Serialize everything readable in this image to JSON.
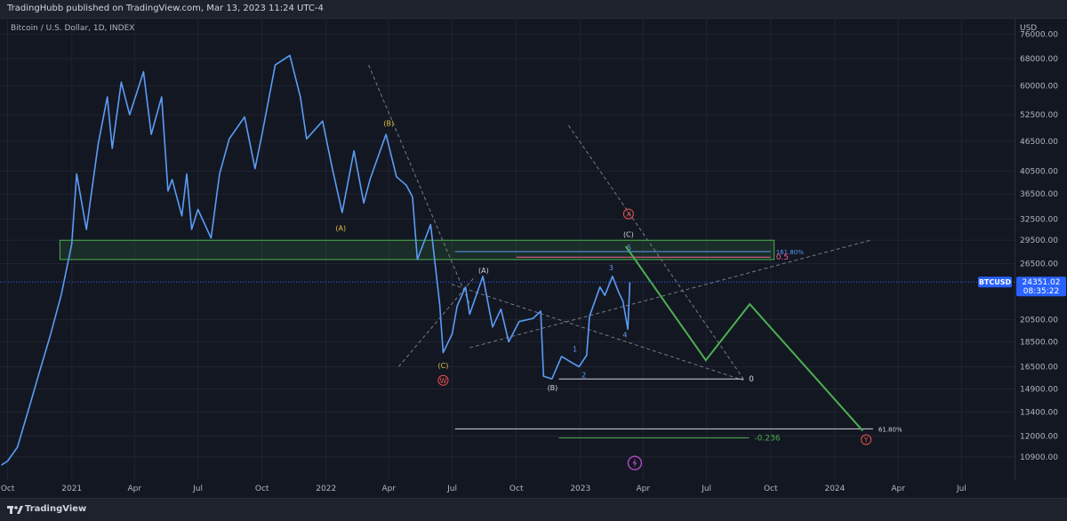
{
  "header": {
    "publisher_text": "TradingHubb published on TradingView.com, Mar 13, 2023 11:24 UTC-4"
  },
  "symbol_line": "Bitcoin / U.S. Dollar, 1D, INDEX",
  "footer": {
    "brand": "TradingView",
    "logo_icon": "tradingview-logo-icon"
  },
  "price_badge": {
    "symbol": "BTCUSD",
    "price": "24351.02",
    "countdown": "08:35:22",
    "color": "#2962ff"
  },
  "chart_data": {
    "type": "line",
    "title": "Bitcoin / U.S. Dollar, 1D, INDEX",
    "currency": "USD",
    "scale": "log",
    "ylim": [
      9800,
      82000
    ],
    "xlim": [
      "2020-09-20",
      "2024-09-15"
    ],
    "x_ticks": [
      {
        "label": "Oct",
        "date": "2020-10-01"
      },
      {
        "label": "2021",
        "date": "2021-01-01"
      },
      {
        "label": "Apr",
        "date": "2021-04-01"
      },
      {
        "label": "Jul",
        "date": "2021-07-01"
      },
      {
        "label": "Oct",
        "date": "2021-10-01"
      },
      {
        "label": "2022",
        "date": "2022-01-01"
      },
      {
        "label": "Apr",
        "date": "2022-04-01"
      },
      {
        "label": "Jul",
        "date": "2022-07-01"
      },
      {
        "label": "Oct",
        "date": "2022-10-01"
      },
      {
        "label": "2023",
        "date": "2023-01-01"
      },
      {
        "label": "Apr",
        "date": "2023-04-01"
      },
      {
        "label": "Jul",
        "date": "2023-07-01"
      },
      {
        "label": "Oct",
        "date": "2023-10-01"
      },
      {
        "label": "2024",
        "date": "2024-01-01"
      },
      {
        "label": "Apr",
        "date": "2024-04-01"
      },
      {
        "label": "Jul",
        "date": "2024-07-01"
      }
    ],
    "y_ticks": [
      {
        "label": "76000.00",
        "value": 76000
      },
      {
        "label": "68000.00",
        "value": 68000
      },
      {
        "label": "60000.00",
        "value": 60000
      },
      {
        "label": "52500.00",
        "value": 52500
      },
      {
        "label": "46500.00",
        "value": 46500
      },
      {
        "label": "40500.00",
        "value": 40500
      },
      {
        "label": "36500.00",
        "value": 36500
      },
      {
        "label": "32500.00",
        "value": 32500
      },
      {
        "label": "29500.00",
        "value": 29500
      },
      {
        "label": "26500.00",
        "value": 26500
      },
      {
        "label": "20500.00",
        "value": 20500
      },
      {
        "label": "18500.00",
        "value": 18500
      },
      {
        "label": "16500.00",
        "value": 16500
      },
      {
        "label": "14900.00",
        "value": 14900
      },
      {
        "label": "13400.00",
        "value": 13400
      },
      {
        "label": "12000.00",
        "value": 12000
      },
      {
        "label": "10900.00",
        "value": 10900
      }
    ],
    "series": [
      {
        "color": "#5b9cf6",
        "points": [
          [
            "2020-09-22",
            10500
          ],
          [
            "2020-10-01",
            10700
          ],
          [
            "2020-10-15",
            11400
          ],
          [
            "2020-11-01",
            13700
          ],
          [
            "2020-11-15",
            16000
          ],
          [
            "2020-12-01",
            19000
          ],
          [
            "2020-12-17",
            23000
          ],
          [
            "2021-01-01",
            29000
          ],
          [
            "2021-01-08",
            40000
          ],
          [
            "2021-01-22",
            31000
          ],
          [
            "2021-02-08",
            46000
          ],
          [
            "2021-02-21",
            57000
          ],
          [
            "2021-02-28",
            45000
          ],
          [
            "2021-03-13",
            61000
          ],
          [
            "2021-03-25",
            52500
          ],
          [
            "2021-04-14",
            64000
          ],
          [
            "2021-04-25",
            48000
          ],
          [
            "2021-05-10",
            57000
          ],
          [
            "2021-05-19",
            37000
          ],
          [
            "2021-05-25",
            39000
          ],
          [
            "2021-06-08",
            33000
          ],
          [
            "2021-06-15",
            40000
          ],
          [
            "2021-06-22",
            31000
          ],
          [
            "2021-07-01",
            34000
          ],
          [
            "2021-07-20",
            29800
          ],
          [
            "2021-08-01",
            40000
          ],
          [
            "2021-08-15",
            47000
          ],
          [
            "2021-09-06",
            52000
          ],
          [
            "2021-09-21",
            41000
          ],
          [
            "2021-10-01",
            48000
          ],
          [
            "2021-10-20",
            66000
          ],
          [
            "2021-11-10",
            69000
          ],
          [
            "2021-11-25",
            57000
          ],
          [
            "2021-12-04",
            47000
          ],
          [
            "2021-12-27",
            51000
          ],
          [
            "2022-01-10",
            41000
          ],
          [
            "2022-01-24",
            33500
          ],
          [
            "2022-02-10",
            44500
          ],
          [
            "2022-02-24",
            35000
          ],
          [
            "2022-03-05",
            39000
          ],
          [
            "2022-03-28",
            48000
          ],
          [
            "2022-04-12",
            39500
          ],
          [
            "2022-04-26",
            38000
          ],
          [
            "2022-05-05",
            36000
          ],
          [
            "2022-05-12",
            27000
          ],
          [
            "2022-05-31",
            31700
          ],
          [
            "2022-06-13",
            22000
          ],
          [
            "2022-06-18",
            17600
          ],
          [
            "2022-07-01",
            19200
          ],
          [
            "2022-07-08",
            21800
          ],
          [
            "2022-07-20",
            23800
          ],
          [
            "2022-07-26",
            21000
          ],
          [
            "2022-08-14",
            25000
          ],
          [
            "2022-08-28",
            19800
          ],
          [
            "2022-09-09",
            21500
          ],
          [
            "2022-09-20",
            18500
          ],
          [
            "2022-10-05",
            20300
          ],
          [
            "2022-10-25",
            20600
          ],
          [
            "2022-11-05",
            21300
          ],
          [
            "2022-11-09",
            15800
          ],
          [
            "2022-11-21",
            15600
          ],
          [
            "2022-12-05",
            17300
          ],
          [
            "2022-12-20",
            16800
          ],
          [
            "2022-12-30",
            16500
          ],
          [
            "2023-01-10",
            17400
          ],
          [
            "2023-01-14",
            20800
          ],
          [
            "2023-01-29",
            23800
          ],
          [
            "2023-02-05",
            22900
          ],
          [
            "2023-02-16",
            25000
          ],
          [
            "2023-02-25",
            23200
          ],
          [
            "2023-03-03",
            22300
          ],
          [
            "2023-03-10",
            19600
          ],
          [
            "2023-03-13",
            24351
          ]
        ]
      }
    ],
    "support_zone": {
      "date_start": "2020-12-15",
      "date_end": "2023-10-06",
      "price_low": 27000,
      "price_high": 29500,
      "color": "#4caf50"
    },
    "guides": [
      {
        "date1": "2022-03-03",
        "price1": 66000,
        "date2": "2022-07-26",
        "price2": 22000,
        "color": "#787b86",
        "dash": true
      },
      {
        "date1": "2022-04-15",
        "price1": 16500,
        "date2": "2022-08-03",
        "price2": 25000,
        "color": "#787b86",
        "dash": true
      },
      {
        "date1": "2022-06-30",
        "price1": 24100,
        "date2": "2023-08-23",
        "price2": 15500,
        "color": "#787b86",
        "dash": true
      },
      {
        "date1": "2022-07-26",
        "price1": 18000,
        "date2": "2024-02-21",
        "price2": 29500,
        "color": "#787b86",
        "dash": true
      },
      {
        "date1": "2022-12-15",
        "price1": 50000,
        "date2": "2023-08-23",
        "price2": 15600,
        "color": "#787b86",
        "dash": true
      }
    ],
    "levels": [
      {
        "date_start": "2022-07-05",
        "date_end": "2023-10-01",
        "price": 28000,
        "color": "#5b9cf6",
        "label": "161.80%"
      },
      {
        "date_start": "2022-10-01",
        "date_end": "2023-10-01",
        "price": 27300,
        "color": "#f06292",
        "label": "0.5"
      },
      {
        "date_start": "2022-12-01",
        "date_end": "2023-08-23",
        "price": 15600,
        "color": "#d1d4dc",
        "label": "0"
      },
      {
        "date_start": "2022-07-05",
        "date_end": "2024-02-25",
        "price": 12400,
        "color": "#d1d4dc",
        "label": "61.80%"
      },
      {
        "date_start": "2022-12-01",
        "date_end": "2023-08-31",
        "price": 11900,
        "color": "#4caf50",
        "label": "-0.236"
      }
    ],
    "projection": {
      "color": "#4caf50",
      "points": [
        [
          "2023-03-07",
          28700
        ],
        [
          "2023-06-30",
          17000
        ],
        [
          "2023-09-01",
          22000
        ],
        [
          "2024-02-10",
          12300
        ]
      ]
    },
    "annotations": [
      {
        "text": "(B)",
        "date": "2022-04-01",
        "price": 50500,
        "color": "#e0c341"
      },
      {
        "text": "(A)",
        "date": "2022-01-22",
        "price": 31200,
        "color": "#e0c341"
      },
      {
        "text": "(C)",
        "date": "2022-06-18",
        "price": 16600,
        "color": "#e0c341"
      },
      {
        "text": "W",
        "date": "2022-06-18",
        "price": 15500,
        "color": "#ef5350",
        "circle": true
      },
      {
        "text": "(A)",
        "date": "2022-08-15",
        "price": 25700,
        "color": "#d1d4dc"
      },
      {
        "text": "(B)",
        "date": "2022-11-22",
        "price": 15000,
        "color": "#d1d4dc"
      },
      {
        "text": "1",
        "date": "2022-12-24",
        "price": 17900,
        "color": "#5b9cf6"
      },
      {
        "text": "2",
        "date": "2023-01-06",
        "price": 15900,
        "color": "#5b9cf6"
      },
      {
        "text": "3",
        "date": "2023-02-14",
        "price": 26000,
        "color": "#5b9cf6"
      },
      {
        "text": "4",
        "date": "2023-03-06",
        "price": 19100,
        "color": "#5b9cf6"
      },
      {
        "text": "5",
        "date": "2023-03-12",
        "price": 28500,
        "color": "#5b9cf6"
      },
      {
        "text": "(C)",
        "date": "2023-03-11",
        "price": 30300,
        "color": "#d1d4dc"
      },
      {
        "text": "X",
        "date": "2023-03-11",
        "price": 33300,
        "color": "#ef5350",
        "circle": true
      },
      {
        "text": "Y",
        "date": "2024-02-15",
        "price": 11800,
        "color": "#ef5350",
        "circle": true
      }
    ],
    "event_icon": {
      "date": "2023-03-20",
      "price": 10600,
      "color": "#ab47bc",
      "name": "lightning-event-icon"
    }
  }
}
